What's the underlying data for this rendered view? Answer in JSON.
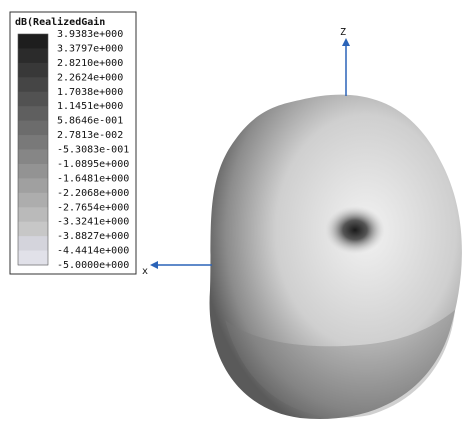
{
  "legend": {
    "title": "dB(RealizedGain",
    "labels": [
      "3.9383e+000",
      "3.3797e+000",
      "2.8210e+000",
      "2.2624e+000",
      "1.7038e+000",
      "1.1451e+000",
      "5.8646e-001",
      "2.7813e-002",
      "-5.3083e-001",
      "-1.0895e+000",
      "-1.6481e+000",
      "-2.2068e+000",
      "-2.7654e+000",
      "-3.3241e+000",
      "-3.8827e+000",
      "-4.4414e+000",
      "-5.0000e+000"
    ]
  },
  "axes": {
    "z": "Z",
    "x": "x"
  }
}
